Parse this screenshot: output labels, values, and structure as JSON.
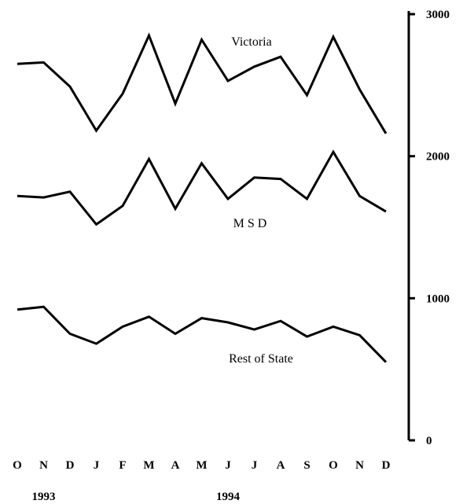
{
  "chart_data": {
    "type": "line",
    "x": [
      "O",
      "N",
      "D",
      "J",
      "F",
      "M",
      "A",
      "M",
      "J",
      "J",
      "A",
      "S",
      "O",
      "N",
      "D"
    ],
    "year_labels": [
      {
        "label": "1993",
        "x_index": 1
      },
      {
        "label": "1994",
        "x_index": 8
      }
    ],
    "y_ticks": [
      "0",
      "1000",
      "2000",
      "3000"
    ],
    "ylim": [
      0,
      3000
    ],
    "y_axis_position": "right",
    "grid": false,
    "legend": "none",
    "series": [
      {
        "name": "Victoria",
        "values": [
          2650,
          2660,
          2490,
          2180,
          2440,
          2850,
          2370,
          2820,
          2530,
          2630,
          2700,
          2430,
          2840,
          2470,
          2160
        ]
      },
      {
        "name": "M S D",
        "values": [
          1720,
          1710,
          1750,
          1520,
          1650,
          1980,
          1630,
          1950,
          1700,
          1850,
          1840,
          1700,
          2030,
          1720,
          1610
        ]
      },
      {
        "name": "Rest of State",
        "values": [
          920,
          940,
          750,
          680,
          800,
          870,
          750,
          860,
          830,
          780,
          840,
          730,
          800,
          740,
          550
        ]
      }
    ],
    "colors": {
      "line": "#000000",
      "background": "#ffffff"
    }
  }
}
